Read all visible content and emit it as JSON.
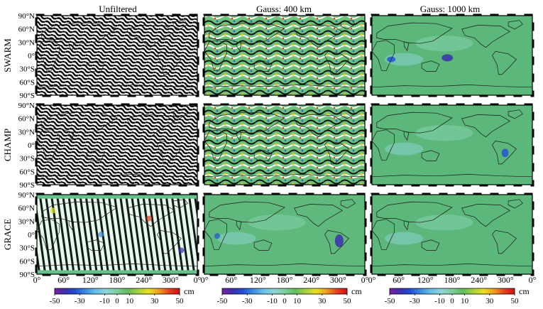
{
  "columns": [
    "Unfiltered",
    "Gauss: 400 km",
    "Gauss: 1000 km"
  ],
  "rows": [
    "SWARM",
    "CHAMP",
    "GRACE"
  ],
  "lat_ticks": [
    "90°N",
    "60°N",
    "30°N",
    "0°",
    "30°S",
    "60°S",
    "90°S"
  ],
  "lon_ticks": [
    "0°",
    "60°",
    "120°",
    "180°",
    "240°",
    "300°",
    "0°"
  ],
  "colorbar": {
    "unit": "cm",
    "tick_labels": [
      "-50",
      "-30",
      "-10",
      "0",
      "10",
      "30",
      "50"
    ],
    "colors": [
      "#7a1fa2",
      "#3b2fb0",
      "#2050d8",
      "#3a8fe0",
      "#67c3ea",
      "#8ed6d8",
      "#7fcf9a",
      "#5fbf5a",
      "#a8d040",
      "#e8e020",
      "#f0a020",
      "#e84020",
      "#d01010"
    ]
  },
  "panel_style": {
    "SWARM": [
      "stripes",
      "noisy-high",
      "smooth-low"
    ],
    "CHAMP": [
      "stripes",
      "noisy-high",
      "smooth-low"
    ],
    "GRACE": [
      "stripes-colored",
      "smooth-mid",
      "smooth-low"
    ]
  },
  "colors": {
    "ocean_green": "#5cb77a",
    "land_line": "#1a1a1a",
    "frame": "#000000"
  }
}
